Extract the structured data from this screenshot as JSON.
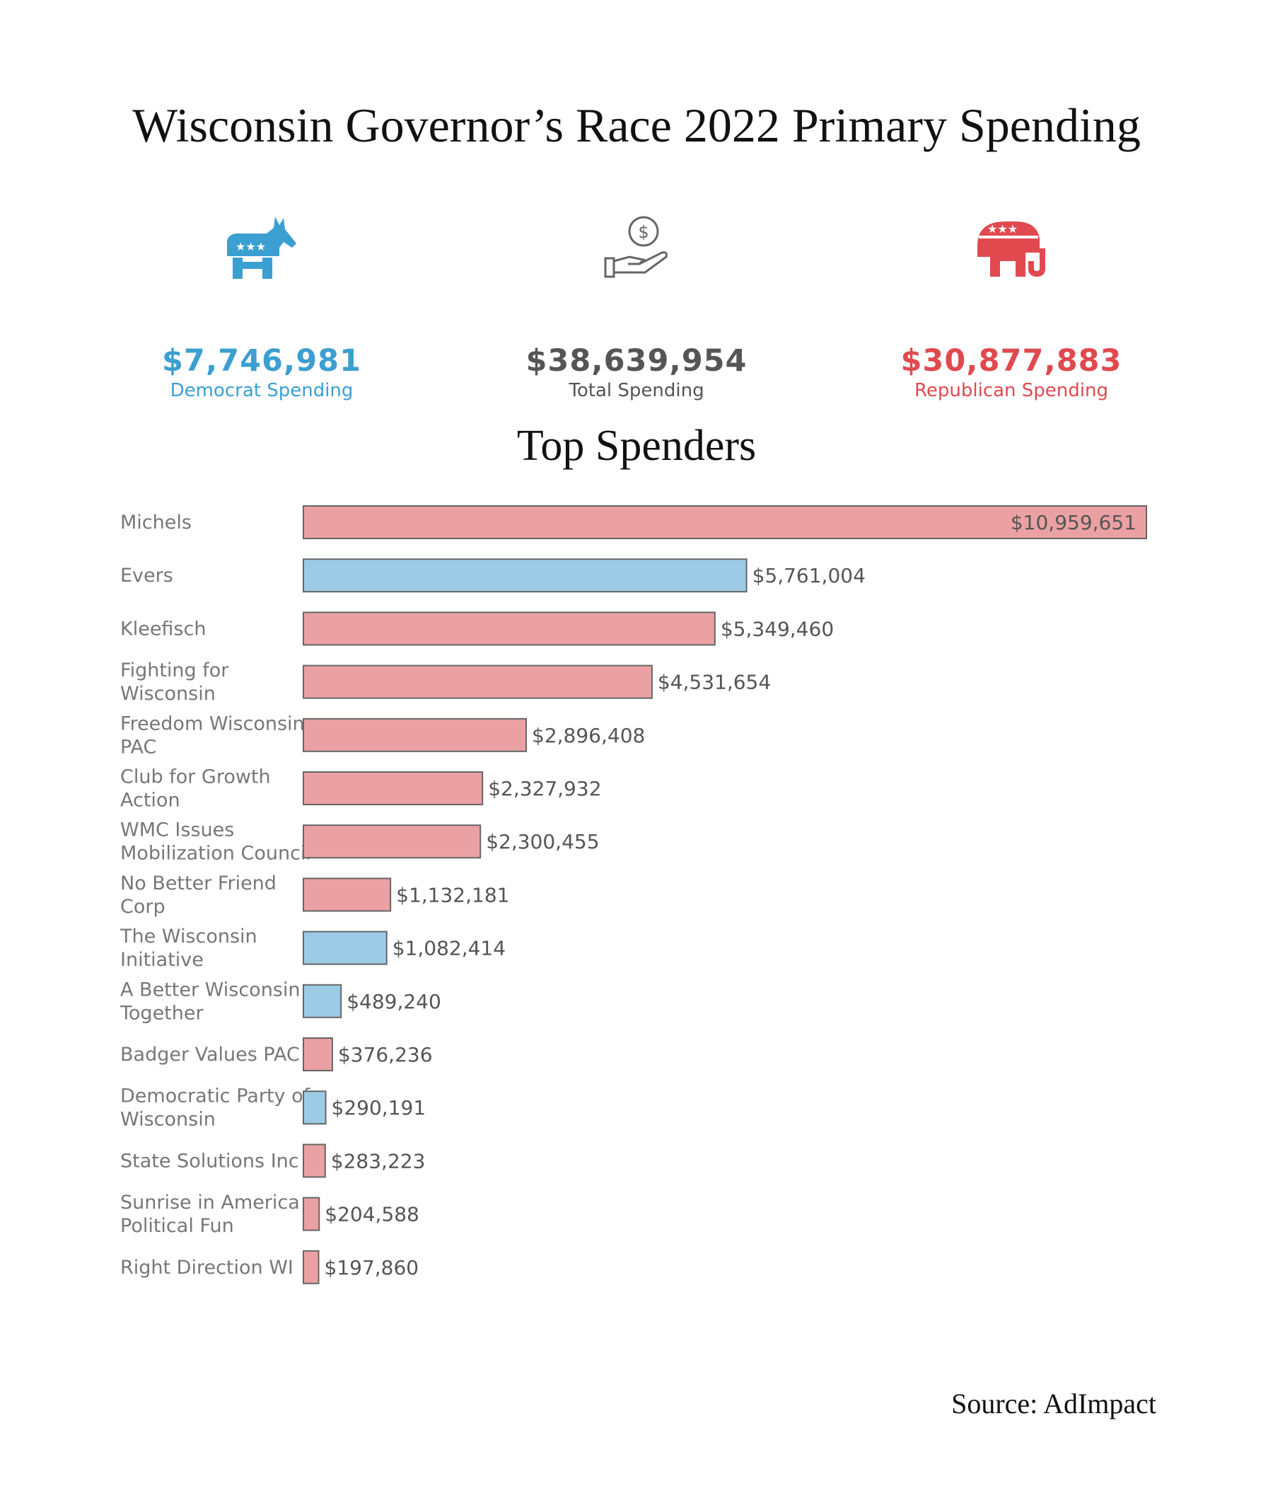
{
  "title": "Wisconsin Governor’s Race 2022 Primary Spending",
  "stats": {
    "democrat": {
      "value": "$7,746,981",
      "label": "Democrat Spending",
      "icon": "donkey-icon",
      "color": "#3b9fd1"
    },
    "total": {
      "value": "$38,639,954",
      "label": "Total Spending",
      "icon": "money-hand-icon",
      "color": "#555555"
    },
    "republican": {
      "value": "$30,877,883",
      "label": "Republican Spending",
      "icon": "elephant-icon",
      "color": "#e04a4f"
    }
  },
  "source": "Source: AdImpact",
  "chart_data": {
    "type": "bar",
    "orientation": "horizontal",
    "title": "Top Spenders",
    "categories": [
      "Michels",
      "Evers",
      "Kleefisch",
      "Fighting for Wisconsin",
      "Freedom Wisconsin PAC",
      "Club for Growth Action",
      "WMC Issues Mobilization Council",
      "No Better Friend Corp",
      "The Wisconsin Initiative",
      "A Better Wisconsin Together",
      "Badger Values PAC",
      "Democratic Party of Wisconsin",
      "State Solutions Inc",
      "Sunrise in America Political Fun",
      "Right Direction WI"
    ],
    "values": [
      10959651,
      5761004,
      5349460,
      4531654,
      2896408,
      2327932,
      2300455,
      1132181,
      1082414,
      489240,
      376236,
      290191,
      283223,
      204588,
      197860
    ],
    "value_labels": [
      "$10,959,651",
      "$5,761,004",
      "$5,349,460",
      "$4,531,654",
      "$2,896,408",
      "$2,327,932",
      "$2,300,455",
      "$1,132,181",
      "$1,082,414",
      "$489,240",
      "$376,236",
      "$290,191",
      "$283,223",
      "$204,588",
      "$197,860"
    ],
    "party": [
      "R",
      "D",
      "R",
      "R",
      "R",
      "R",
      "R",
      "R",
      "D",
      "D",
      "R",
      "D",
      "R",
      "R",
      "R"
    ],
    "colors": {
      "R": "#eba1a4",
      "D": "#9ccbe5",
      "outline": "#666666"
    },
    "xlim": [
      0,
      10959651
    ],
    "axes": "none",
    "grid": false
  }
}
